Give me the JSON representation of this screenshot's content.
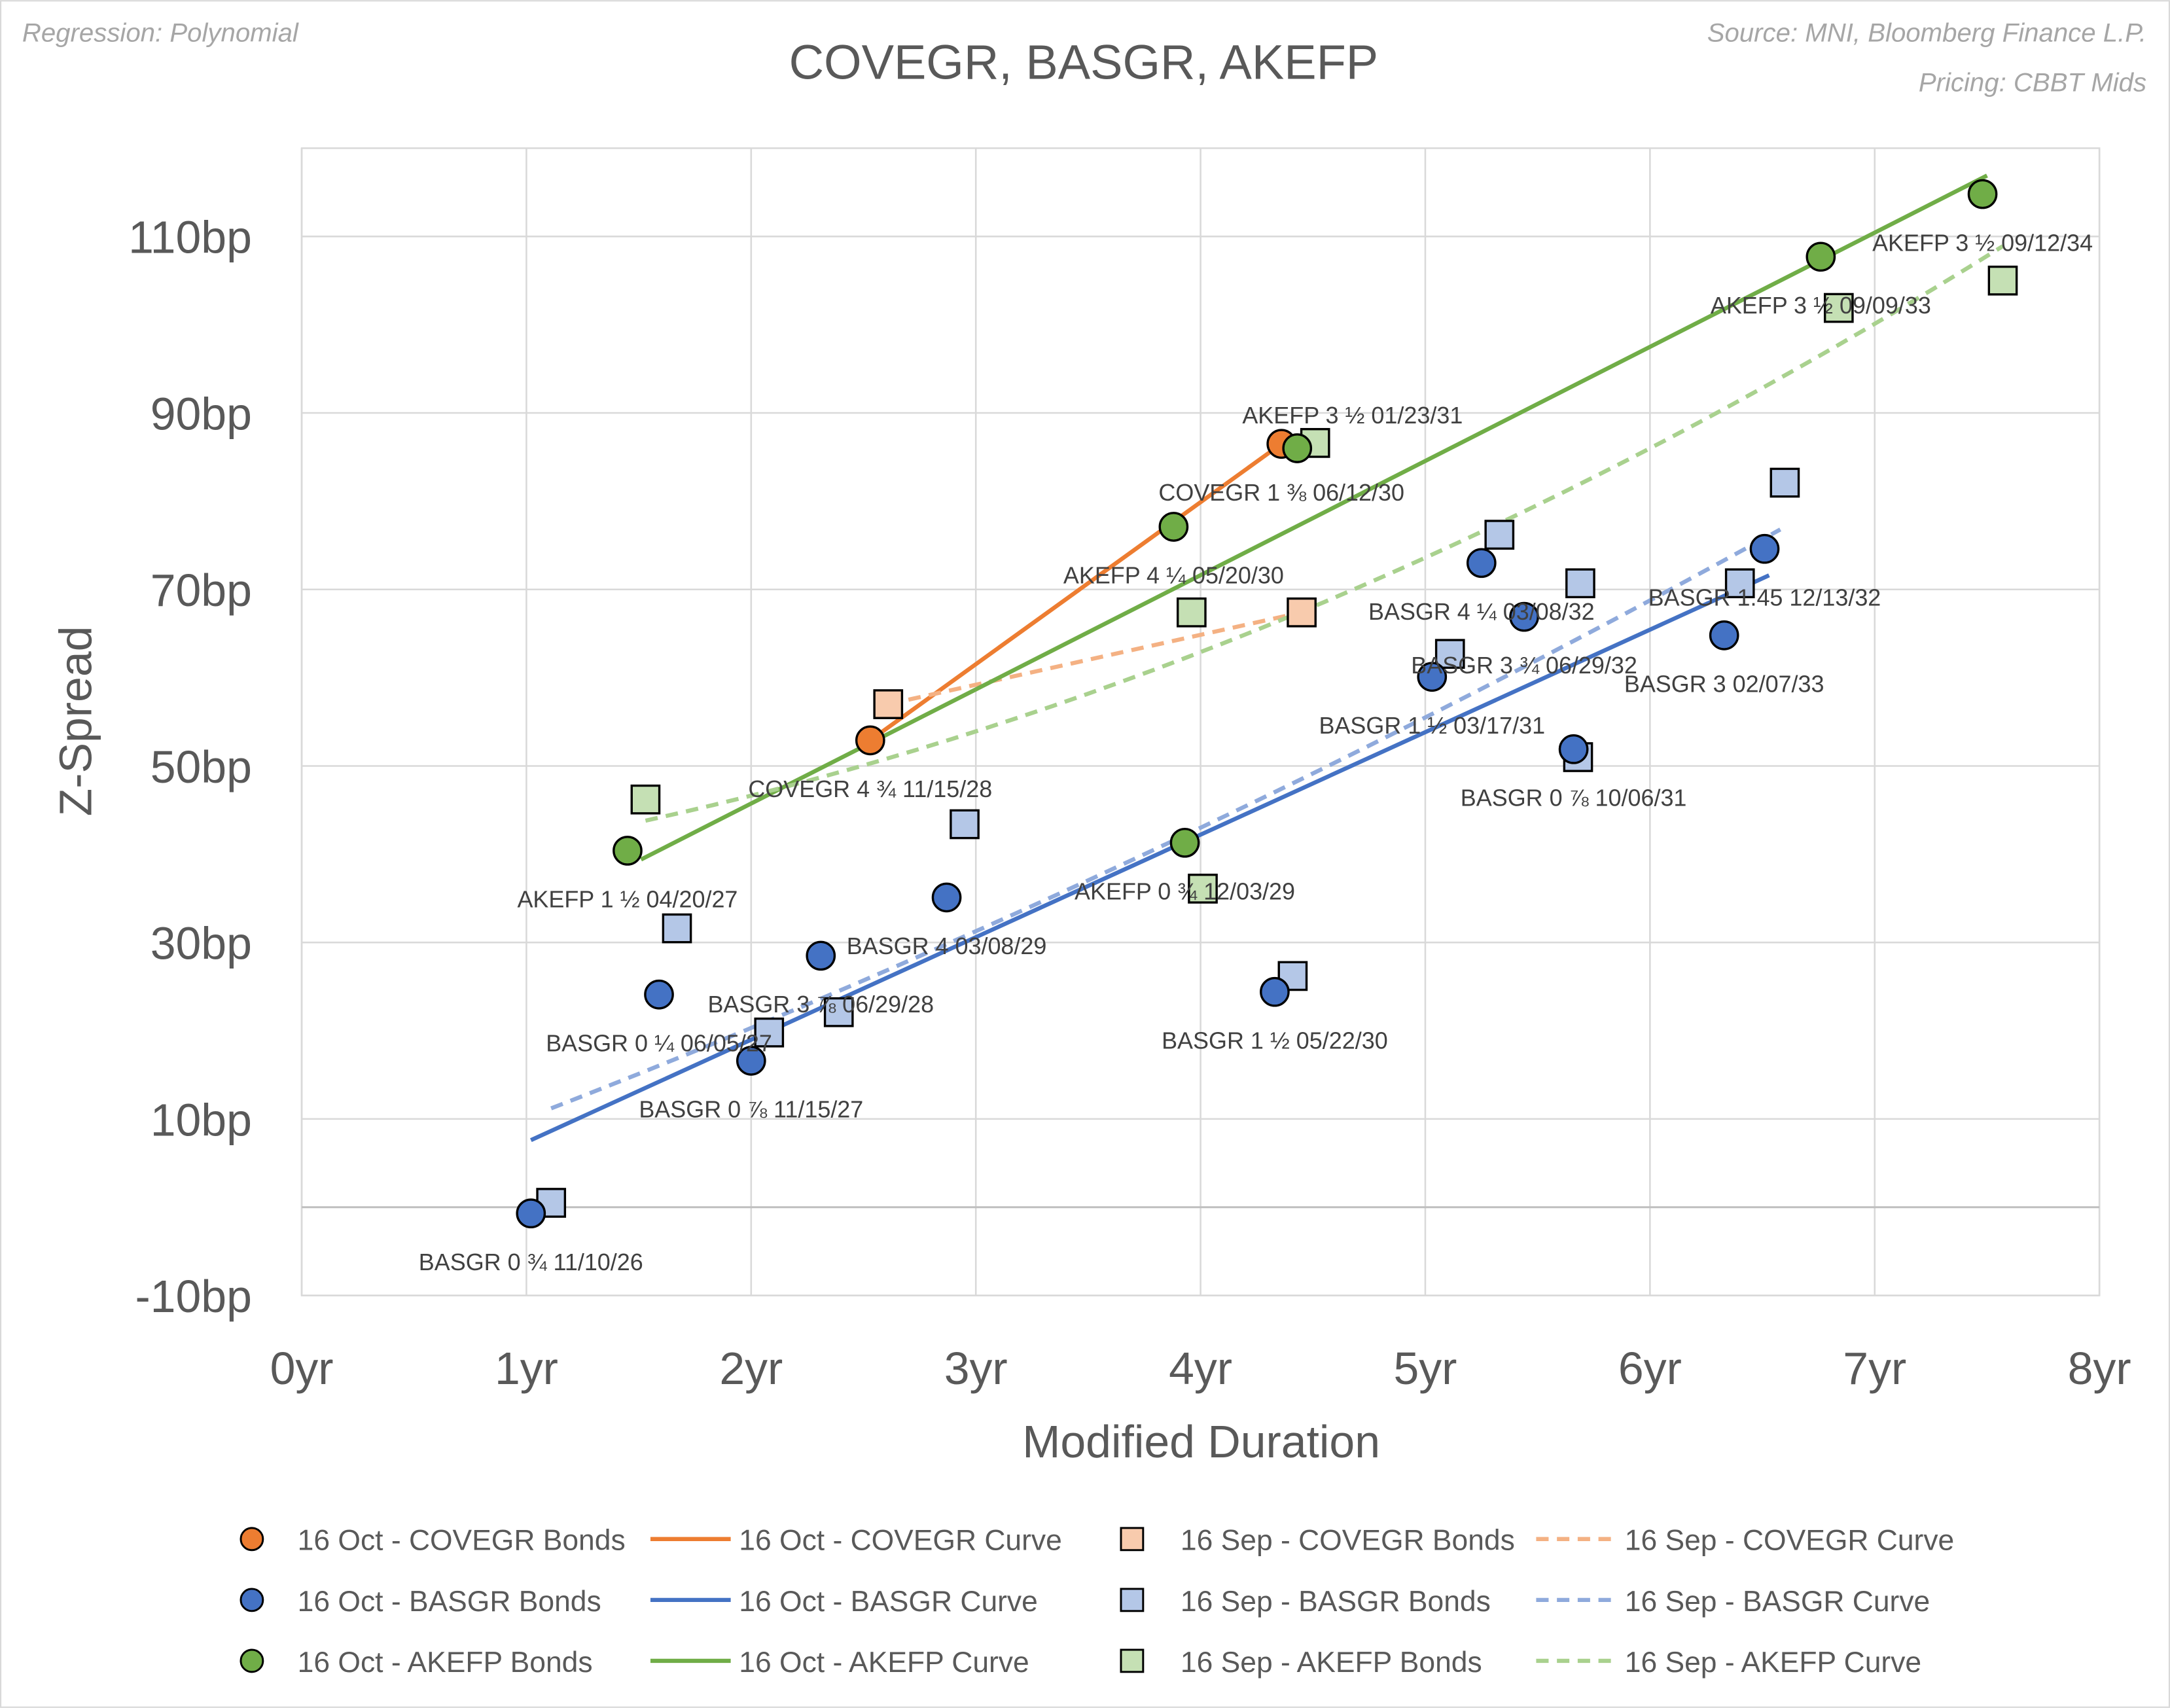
{
  "header": {
    "regression_note": "Regression: Polynomial",
    "source": "Source: MNI, Bloomberg Finance L.P.",
    "pricing": "Pricing: CBBT Mids"
  },
  "chart_data": {
    "type": "scatter",
    "title": "COVEGR, BASGR, AKEFP",
    "xlabel": "Modified Duration",
    "ylabel": "Z-Spread",
    "xlim": [
      0,
      8
    ],
    "ylim": [
      -10,
      120
    ],
    "x_ticks": [
      0,
      1,
      2,
      3,
      4,
      5,
      6,
      7,
      8
    ],
    "x_tick_labels": [
      "0yr",
      "1yr",
      "2yr",
      "3yr",
      "4yr",
      "5yr",
      "6yr",
      "7yr",
      "8yr"
    ],
    "y_ticks": [
      -10,
      10,
      30,
      50,
      70,
      90,
      110
    ],
    "y_tick_labels": [
      "-10bp",
      "10bp",
      "30bp",
      "50bp",
      "70bp",
      "90bp",
      "110bp"
    ],
    "grid": true,
    "legend_position": "bottom",
    "colors": {
      "covegr": "#ed7d31",
      "covegr_light": "#f8cbad",
      "basgr": "#4472c4",
      "basgr_light": "#b4c7e7",
      "akefp": "#70ad47",
      "akefp_light": "#c5e0b4"
    },
    "series": [
      {
        "name": "16 Oct - COVEGR Bonds",
        "kind": "circle",
        "color": "#ed7d31",
        "points": [
          [
            2.53,
            52.9
          ],
          [
            4.36,
            86.5
          ]
        ],
        "labels": [
          "COVEGR 4 ¾ 11/15/28",
          "COVEGR 1 ⅜ 06/12/30"
        ]
      },
      {
        "name": "16 Oct - COVEGR Curve",
        "kind": "line",
        "color": "#ed7d31",
        "points": [
          [
            2.53,
            52.9
          ],
          [
            4.36,
            86.5
          ]
        ]
      },
      {
        "name": "16 Sep - COVEGR Bonds",
        "kind": "square",
        "color": "#f8cbad",
        "points": [
          [
            2.61,
            57.0
          ],
          [
            4.45,
            67.4
          ]
        ]
      },
      {
        "name": "16 Sep - COVEGR Curve",
        "kind": "dash",
        "color": "#f4b183",
        "points": [
          [
            2.61,
            57.0
          ],
          [
            4.45,
            67.4
          ]
        ]
      },
      {
        "name": "16 Oct - BASGR Bonds",
        "kind": "circle",
        "color": "#4472c4",
        "points": [
          [
            1.02,
            -0.7
          ],
          [
            1.59,
            24.1
          ],
          [
            2.0,
            16.6
          ],
          [
            2.31,
            28.5
          ],
          [
            2.87,
            35.1
          ],
          [
            4.33,
            24.4
          ],
          [
            5.03,
            60.1
          ],
          [
            5.25,
            73.0
          ],
          [
            5.44,
            66.9
          ],
          [
            5.66,
            51.9
          ],
          [
            6.33,
            64.8
          ],
          [
            6.51,
            74.6
          ]
        ],
        "labels": [
          "BASGR 0 ¾ 11/10/26",
          "BASGR 0 ¼ 06/05/27",
          "BASGR 0 ⅞ 11/15/27",
          "BASGR 3 ⅞ 06/29/28",
          "BASGR 4 03/08/29",
          "BASGR 1 ½ 05/22/30",
          "BASGR 1 ½ 03/17/31",
          "BASGR 4 ¼ 03/08/32",
          "BASGR 3 ¾ 06/29/32",
          "BASGR 0 ⅞ 10/06/31",
          "BASGR 3 02/07/33",
          "BASGR 1.45 12/13/32"
        ]
      },
      {
        "name": "16 Oct - BASGR Curve",
        "kind": "line",
        "color": "#4472c4",
        "points": [
          [
            1.02,
            7.6
          ],
          [
            6.53,
            71.6
          ]
        ]
      },
      {
        "name": "16 Sep - BASGR Bonds",
        "kind": "square",
        "color": "#b4c7e7",
        "points": [
          [
            1.11,
            0.5
          ],
          [
            1.67,
            31.6
          ],
          [
            2.08,
            19.8
          ],
          [
            2.39,
            22.1
          ],
          [
            2.95,
            43.4
          ],
          [
            4.41,
            26.2
          ],
          [
            5.11,
            62.7
          ],
          [
            5.33,
            76.2
          ],
          [
            5.69,
            70.7
          ],
          [
            5.68,
            51.0
          ],
          [
            6.4,
            70.7
          ],
          [
            6.6,
            82.1
          ]
        ]
      },
      {
        "name": "16 Sep - BASGR Curve",
        "kind": "dash",
        "color": "#8faadc",
        "points": [
          [
            1.11,
            11.2
          ],
          [
            4.0,
            43.0
          ],
          [
            6.58,
            76.8
          ]
        ]
      },
      {
        "name": "16 Oct - AKEFP Bonds",
        "kind": "circle",
        "color": "#70ad47",
        "points": [
          [
            1.45,
            40.4
          ],
          [
            3.88,
            77.1
          ],
          [
            3.93,
            41.3
          ],
          [
            4.43,
            86.0
          ],
          [
            6.76,
            107.7
          ],
          [
            7.48,
            114.8
          ]
        ],
        "labels": [
          "AKEFP 1 ½ 04/20/27",
          "AKEFP 4 ¼ 05/20/30",
          "AKEFP 0 ¾ 12/03/29",
          "AKEFP 3 ½ 01/23/31",
          "AKEFP 3 ½ 09/09/33",
          "AKEFP 3 ½ 09/12/34"
        ]
      },
      {
        "name": "16 Oct - AKEFP Curve",
        "kind": "line",
        "color": "#70ad47",
        "points": [
          [
            1.51,
            39.4
          ],
          [
            7.5,
            116.9
          ]
        ]
      },
      {
        "name": "16 Sep - AKEFP Bonds",
        "kind": "square",
        "color": "#c5e0b4",
        "points": [
          [
            1.53,
            46.2
          ],
          [
            3.96,
            67.4
          ],
          [
            4.01,
            36.1
          ],
          [
            4.51,
            86.6
          ],
          [
            6.84,
            101.9
          ],
          [
            7.57,
            105.0
          ]
        ]
      },
      {
        "name": "16 Sep - AKEFP Curve",
        "kind": "dash",
        "color": "#a9d18e",
        "points": [
          [
            1.53,
            43.8
          ],
          [
            4.0,
            62.9
          ],
          [
            7.57,
            108.9
          ]
        ]
      }
    ]
  }
}
